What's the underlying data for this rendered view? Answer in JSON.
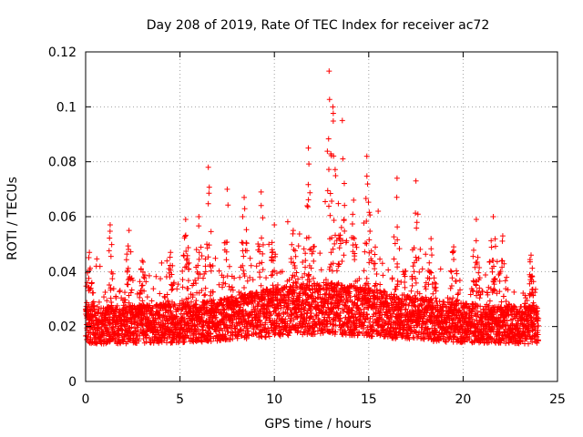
{
  "chart_data": {
    "type": "scatter",
    "title": "Day 208 of 2019, Rate Of TEC Index for receiver ac72",
    "xlabel": "GPS time / hours",
    "ylabel": "ROTI / TECUs",
    "xlim": [
      0,
      25
    ],
    "ylim": [
      0,
      0.12
    ],
    "xticks": [
      0,
      5,
      10,
      15,
      20,
      25
    ],
    "xtick_labels": [
      "0",
      "5",
      "10",
      "15",
      "20",
      "25"
    ],
    "yticks": [
      0,
      0.02,
      0.04,
      0.06,
      0.08,
      0.1,
      0.12
    ],
    "ytick_labels": [
      "0",
      "0.02",
      "0.04",
      "0.06",
      "0.08",
      "0.1",
      "0.12"
    ],
    "grid": true,
    "marker": "+",
    "series": [
      {
        "name": "ROTI",
        "color": "#ff0000",
        "generator": {
          "x_range": [
            0,
            24
          ],
          "step_hours": 0.006,
          "base_mean": 0.016,
          "base_spread": 0.007,
          "floor": 0.004,
          "peaks": [
            {
              "t": 0.2,
              "max": 0.047
            },
            {
              "t": 1.3,
              "max": 0.057
            },
            {
              "t": 2.3,
              "max": 0.055
            },
            {
              "t": 3.0,
              "max": 0.044
            },
            {
              "t": 4.5,
              "max": 0.047
            },
            {
              "t": 5.3,
              "max": 0.059
            },
            {
              "t": 6.0,
              "max": 0.06
            },
            {
              "t": 6.5,
              "max": 0.078
            },
            {
              "t": 7.5,
              "max": 0.07
            },
            {
              "t": 8.4,
              "max": 0.067
            },
            {
              "t": 9.3,
              "max": 0.069
            },
            {
              "t": 10.0,
              "max": 0.057
            },
            {
              "t": 11.0,
              "max": 0.055
            },
            {
              "t": 11.8,
              "max": 0.085
            },
            {
              "t": 12.9,
              "max": 0.113
            },
            {
              "t": 13.1,
              "max": 0.1
            },
            {
              "t": 13.6,
              "max": 0.095
            },
            {
              "t": 14.2,
              "max": 0.066
            },
            {
              "t": 14.9,
              "max": 0.082
            },
            {
              "t": 15.5,
              "max": 0.062
            },
            {
              "t": 16.5,
              "max": 0.074
            },
            {
              "t": 17.5,
              "max": 0.073
            },
            {
              "t": 18.3,
              "max": 0.052
            },
            {
              "t": 19.5,
              "max": 0.049
            },
            {
              "t": 20.7,
              "max": 0.059
            },
            {
              "t": 21.6,
              "max": 0.06
            },
            {
              "t": 22.1,
              "max": 0.053
            },
            {
              "t": 23.6,
              "max": 0.046
            }
          ]
        }
      }
    ]
  }
}
